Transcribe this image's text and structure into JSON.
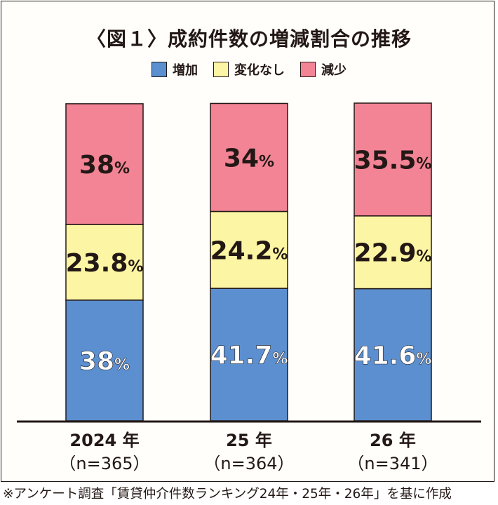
{
  "title": "〈図１〉成約件数の増減割合の推移",
  "legend": [
    {
      "label": "増加",
      "color": "#5b8fd0"
    },
    {
      "label": "変化なし",
      "color": "#fcf6a4"
    },
    {
      "label": "減少",
      "color": "#f28495"
    }
  ],
  "footnote": "※アンケート調査「賃貸仲介件数ランキング24年・25年・26年」を基に作成",
  "chart_data": {
    "type": "bar",
    "stacked": true,
    "categories": [
      "2024 年",
      "25 年",
      "26 年"
    ],
    "sample_sizes": [
      "（n=365）",
      "（n=364）",
      "（n=341）"
    ],
    "series": [
      {
        "name": "増加",
        "values": [
          38,
          41.7,
          41.6
        ],
        "labels": [
          "38",
          "41.7",
          "41.6"
        ],
        "color": "#5b8fd0"
      },
      {
        "name": "変化なし",
        "values": [
          23.8,
          24.2,
          22.9
        ],
        "labels": [
          "23.8",
          "24.2",
          "22.9"
        ],
        "color": "#fcf6a4"
      },
      {
        "name": "減少",
        "values": [
          38,
          34,
          35.5
        ],
        "labels": [
          "38",
          "34",
          "35.5"
        ],
        "color": "#f28495"
      }
    ],
    "value_suffix": "%",
    "ylim": [
      0,
      100
    ]
  }
}
